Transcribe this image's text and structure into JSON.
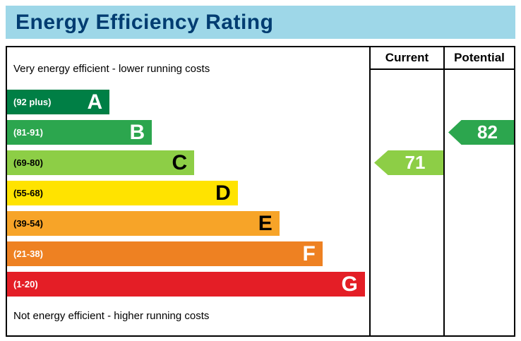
{
  "title": "Energy Efficiency Rating",
  "captions": {
    "top": "Very energy efficient - lower running costs",
    "bottom": "Not energy efficient - higher running costs"
  },
  "columns": {
    "current": "Current",
    "potential": "Potential"
  },
  "colors": {
    "title_bar_bg": "#9ed7e8",
    "title_text": "#003c71",
    "border": "#000000",
    "background": "#ffffff"
  },
  "chart_data": {
    "type": "bar",
    "variant": "epc-energy-efficiency-rating",
    "title": "Energy Efficiency Rating",
    "bands": [
      {
        "letter": "A",
        "range": "(92 plus)",
        "color": "#007f45",
        "text_color": "#ffffff",
        "width_pct": 28.3
      },
      {
        "letter": "B",
        "range": "(81-91)",
        "color": "#2ca64e",
        "text_color": "#ffffff",
        "width_pct": 40.0
      },
      {
        "letter": "C",
        "range": "(69-80)",
        "color": "#8dce46",
        "text_color": "#000000",
        "width_pct": 51.7
      },
      {
        "letter": "D",
        "range": "(55-68)",
        "color": "#ffe300",
        "text_color": "#000000",
        "width_pct": 63.7
      },
      {
        "letter": "E",
        "range": "(39-54)",
        "color": "#f7a428",
        "text_color": "#000000",
        "width_pct": 75.2
      },
      {
        "letter": "F",
        "range": "(21-38)",
        "color": "#ee8122",
        "text_color": "#ffffff",
        "width_pct": 87.1
      },
      {
        "letter": "G",
        "range": "(1-20)",
        "color": "#e41e26",
        "text_color": "#ffffff",
        "width_pct": 98.8
      }
    ],
    "current": {
      "value": 71,
      "band": "C",
      "color": "#8dce46"
    },
    "potential": {
      "value": 82,
      "band": "B",
      "color": "#2ca64e"
    }
  }
}
